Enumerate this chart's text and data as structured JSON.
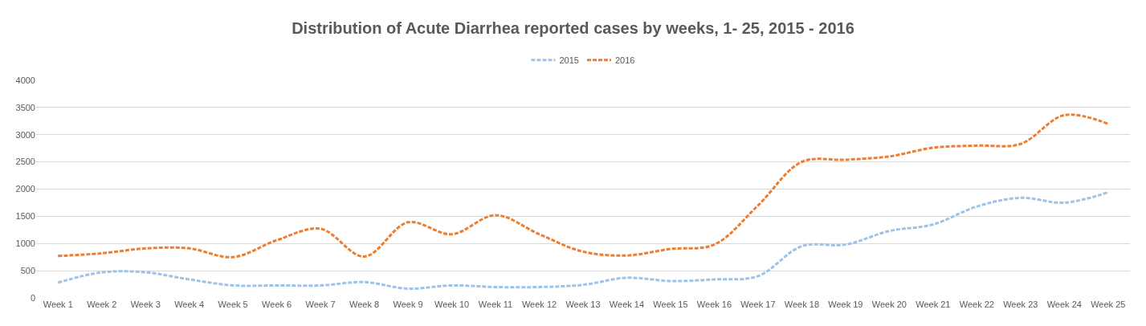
{
  "chart_data": {
    "type": "line",
    "title": "Distribution of Acute Diarrhea reported cases by weeks, 1- 25, 2015 - 2016",
    "categories": [
      "Week 1",
      "Week 2",
      "Week 3",
      "Week 4",
      "Week 5",
      "Week 6",
      "Week 7",
      "Week 8",
      "Week 9",
      "Week 10",
      "Week 11",
      "Week 12",
      "Week 13",
      "Week 14",
      "Week 15",
      "Week 16",
      "Week 17",
      "Week 18",
      "Week 19",
      "Week 20",
      "Week 21",
      "Week 22",
      "Week 23",
      "Week 24",
      "Week 25"
    ],
    "series": [
      {
        "name": "2015",
        "color": "#9dc3e6",
        "line_style": "dashed",
        "values": [
          280,
          470,
          470,
          340,
          230,
          230,
          230,
          290,
          170,
          230,
          200,
          200,
          240,
          370,
          310,
          340,
          400,
          950,
          980,
          1230,
          1350,
          1680,
          1840,
          1750,
          1940
        ]
      },
      {
        "name": "2016",
        "color": "#ed7d31",
        "line_style": "dashed",
        "values": [
          770,
          820,
          910,
          910,
          750,
          1060,
          1270,
          760,
          1390,
          1170,
          1520,
          1170,
          850,
          780,
          900,
          980,
          1700,
          2500,
          2540,
          2600,
          2760,
          2800,
          2830,
          3360,
          3200
        ]
      }
    ],
    "ylim": [
      0,
      4000
    ],
    "yticks": [
      0,
      500,
      1000,
      1500,
      2000,
      2500,
      3000,
      3500,
      4000
    ],
    "grid": "y",
    "legend": "top",
    "marker": "none"
  }
}
